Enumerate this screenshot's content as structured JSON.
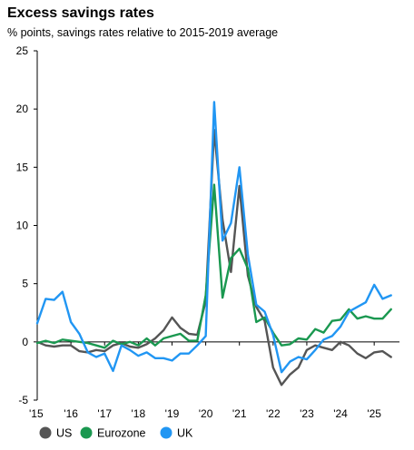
{
  "chart_data": {
    "type": "line",
    "title": "Excess savings rates",
    "subtitle": "% points, savings rates relative to 2015-2019 average",
    "ylim": [
      -5,
      25
    ],
    "y_ticks": [
      25,
      20,
      15,
      10,
      5,
      0,
      -5
    ],
    "x_range": [
      2015,
      2025.75
    ],
    "x_ticks": [
      {
        "label": "'15",
        "x": 2015
      },
      {
        "label": "'16",
        "x": 2016
      },
      {
        "label": "'17",
        "x": 2017
      },
      {
        "label": "'18",
        "x": 2018
      },
      {
        "label": "'19",
        "x": 2019
      },
      {
        "label": "'20",
        "x": 2020
      },
      {
        "label": "'21",
        "x": 2021
      },
      {
        "label": "'22",
        "x": 2022
      },
      {
        "label": "'23",
        "x": 2023
      },
      {
        "label": "'24",
        "x": 2024
      },
      {
        "label": "'25",
        "x": 2025
      }
    ],
    "grid": false,
    "legend_position": "bottom",
    "series": [
      {
        "name": "US",
        "color": "#555555",
        "points": [
          [
            2015.0,
            0.0
          ],
          [
            2015.25,
            -0.3
          ],
          [
            2015.5,
            -0.4
          ],
          [
            2015.75,
            -0.3
          ],
          [
            2016.0,
            -0.3
          ],
          [
            2016.25,
            -0.8
          ],
          [
            2016.5,
            -0.9
          ],
          [
            2016.75,
            -0.7
          ],
          [
            2017.0,
            -0.8
          ],
          [
            2017.25,
            -0.3
          ],
          [
            2017.5,
            -0.1
          ],
          [
            2017.75,
            -0.4
          ],
          [
            2018.0,
            -0.5
          ],
          [
            2018.25,
            -0.2
          ],
          [
            2018.5,
            0.3
          ],
          [
            2018.75,
            1.0
          ],
          [
            2019.0,
            2.1
          ],
          [
            2019.25,
            1.2
          ],
          [
            2019.5,
            0.7
          ],
          [
            2019.75,
            0.6
          ],
          [
            2020.0,
            3.5
          ],
          [
            2020.25,
            18.2
          ],
          [
            2020.5,
            10.5
          ],
          [
            2020.75,
            6.0
          ],
          [
            2021.0,
            13.4
          ],
          [
            2021.25,
            5.7
          ],
          [
            2021.5,
            3.0
          ],
          [
            2021.75,
            1.8
          ],
          [
            2022.0,
            -2.2
          ],
          [
            2022.25,
            -3.7
          ],
          [
            2022.5,
            -2.8
          ],
          [
            2022.75,
            -2.2
          ],
          [
            2023.0,
            -0.7
          ],
          [
            2023.25,
            -0.3
          ],
          [
            2023.5,
            -0.5
          ],
          [
            2023.75,
            -0.7
          ],
          [
            2024.0,
            0.0
          ],
          [
            2024.25,
            -0.3
          ],
          [
            2024.5,
            -1.0
          ],
          [
            2024.75,
            -1.4
          ],
          [
            2025.0,
            -0.9
          ],
          [
            2025.25,
            -0.8
          ],
          [
            2025.5,
            -1.3
          ]
        ]
      },
      {
        "name": "Eurozone",
        "color": "#1a9850",
        "points": [
          [
            2015.0,
            -0.1
          ],
          [
            2015.25,
            0.1
          ],
          [
            2015.5,
            -0.1
          ],
          [
            2015.75,
            0.2
          ],
          [
            2016.0,
            0.1
          ],
          [
            2016.25,
            0.0
          ],
          [
            2016.5,
            -0.1
          ],
          [
            2016.75,
            -0.3
          ],
          [
            2017.0,
            -0.5
          ],
          [
            2017.25,
            0.1
          ],
          [
            2017.5,
            -0.2
          ],
          [
            2017.75,
            0.0
          ],
          [
            2018.0,
            -0.3
          ],
          [
            2018.25,
            0.3
          ],
          [
            2018.5,
            -0.3
          ],
          [
            2018.75,
            0.3
          ],
          [
            2019.0,
            0.5
          ],
          [
            2019.25,
            0.7
          ],
          [
            2019.5,
            0.1
          ],
          [
            2019.75,
            0.1
          ],
          [
            2020.0,
            4.0
          ],
          [
            2020.25,
            13.5
          ],
          [
            2020.5,
            3.8
          ],
          [
            2020.75,
            7.2
          ],
          [
            2021.0,
            8.0
          ],
          [
            2021.25,
            6.3
          ],
          [
            2021.5,
            1.7
          ],
          [
            2021.75,
            2.1
          ],
          [
            2022.0,
            0.8
          ],
          [
            2022.25,
            -0.3
          ],
          [
            2022.5,
            -0.2
          ],
          [
            2022.75,
            0.3
          ],
          [
            2023.0,
            0.2
          ],
          [
            2023.25,
            1.1
          ],
          [
            2023.5,
            0.8
          ],
          [
            2023.75,
            1.8
          ],
          [
            2024.0,
            1.9
          ],
          [
            2024.25,
            2.8
          ],
          [
            2024.5,
            2.0
          ],
          [
            2024.75,
            2.2
          ],
          [
            2025.0,
            2.0
          ],
          [
            2025.25,
            2.0
          ],
          [
            2025.5,
            2.8
          ]
        ]
      },
      {
        "name": "UK",
        "color": "#2196f3",
        "points": [
          [
            2015.0,
            1.6
          ],
          [
            2015.25,
            3.7
          ],
          [
            2015.5,
            3.6
          ],
          [
            2015.75,
            4.3
          ],
          [
            2016.0,
            1.7
          ],
          [
            2016.25,
            0.7
          ],
          [
            2016.5,
            -0.9
          ],
          [
            2016.75,
            -1.3
          ],
          [
            2017.0,
            -1.0
          ],
          [
            2017.25,
            -2.5
          ],
          [
            2017.5,
            -0.3
          ],
          [
            2017.75,
            -0.7
          ],
          [
            2018.0,
            -1.2
          ],
          [
            2018.25,
            -0.9
          ],
          [
            2018.5,
            -1.4
          ],
          [
            2018.75,
            -1.4
          ],
          [
            2019.0,
            -1.6
          ],
          [
            2019.25,
            -1.0
          ],
          [
            2019.5,
            -1.0
          ],
          [
            2019.75,
            -0.3
          ],
          [
            2020.0,
            0.5
          ],
          [
            2020.25,
            20.6
          ],
          [
            2020.5,
            8.7
          ],
          [
            2020.75,
            10.2
          ],
          [
            2021.0,
            15.0
          ],
          [
            2021.25,
            7.5
          ],
          [
            2021.5,
            3.2
          ],
          [
            2021.75,
            2.6
          ],
          [
            2022.0,
            0.6
          ],
          [
            2022.25,
            -2.6
          ],
          [
            2022.5,
            -1.7
          ],
          [
            2022.75,
            -1.3
          ],
          [
            2023.0,
            -1.5
          ],
          [
            2023.25,
            -0.7
          ],
          [
            2023.5,
            0.2
          ],
          [
            2023.75,
            0.5
          ],
          [
            2024.0,
            1.3
          ],
          [
            2024.25,
            2.6
          ],
          [
            2024.5,
            3.0
          ],
          [
            2024.75,
            3.4
          ],
          [
            2025.0,
            4.9
          ],
          [
            2025.25,
            3.7
          ],
          [
            2025.5,
            4.0
          ]
        ]
      }
    ]
  }
}
